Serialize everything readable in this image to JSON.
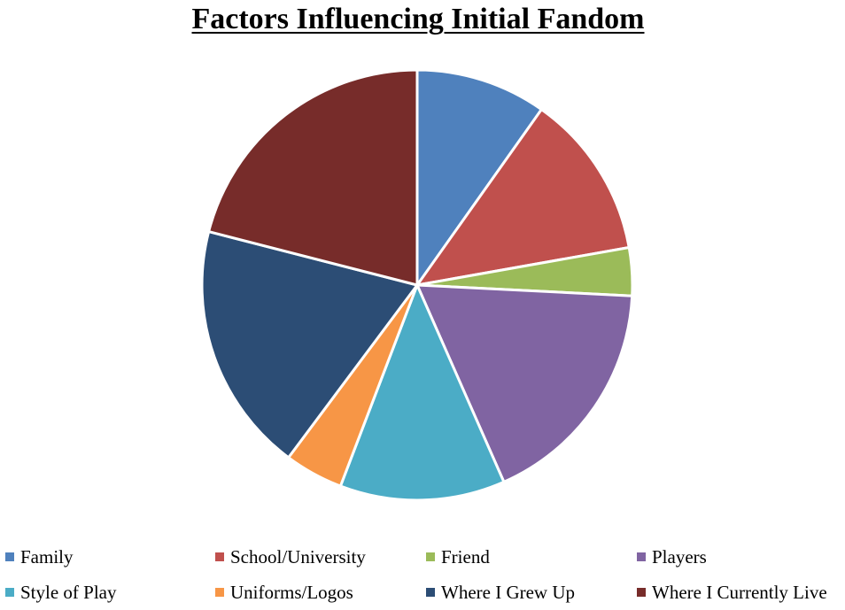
{
  "chart_data": {
    "type": "pie",
    "title": "Factors Influencing Initial Fandom",
    "categories": [
      "Family",
      "School/University",
      "Friend",
      "Players",
      "Style of Play",
      "Uniforms/Logos",
      "Where I Grew Up",
      "Where I Currently Live"
    ],
    "values": [
      9.8,
      12.4,
      3.6,
      17.6,
      12.4,
      4.4,
      18.8,
      21.0
    ],
    "colors": [
      "#4F81BD",
      "#C0504D",
      "#9BBB59",
      "#8064A2",
      "#4BACC6",
      "#F79646",
      "#2C4D75",
      "#772C2A"
    ],
    "legend_position": "bottom",
    "start_angle": "12 o'clock",
    "direction": "clockwise"
  }
}
